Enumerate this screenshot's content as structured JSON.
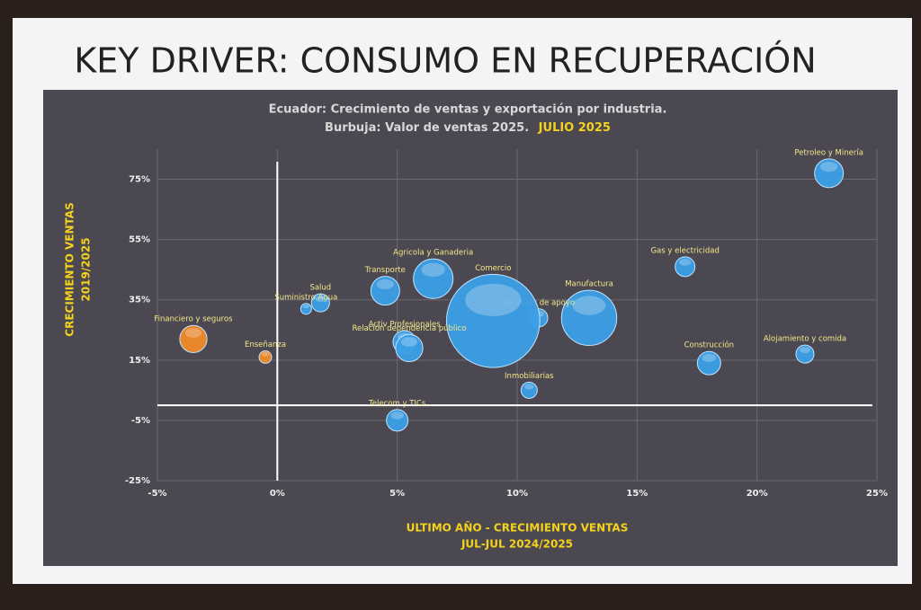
{
  "chart_data": {
    "type": "bubble",
    "title": "KEY DRIVER: CONSUMO EN RECUPERACIÓN",
    "subtitle": "Ecuador: Crecimiento de ventas y exportación por industria.",
    "subtitle2": "Burbuja: Valor de ventas 2025.",
    "subtitle2_highlight": "JULIO 2025",
    "x_label": "ULTIMO AÑO - CRECIMIENTO VENTAS",
    "x_label2": "JUL-JUL  2024/2025",
    "y_label": "CRECIMIENTO VENTAS",
    "y_label2": "2019/2025",
    "xlim": [
      -5,
      25
    ],
    "ylim": [
      -25,
      85
    ],
    "xticks": [
      {
        "value": -5,
        "label": "-5%"
      },
      {
        "value": 0,
        "label": "0%"
      },
      {
        "value": 5,
        "label": "5%"
      },
      {
        "value": 10,
        "label": "10%"
      },
      {
        "value": 15,
        "label": "15%"
      },
      {
        "value": 20,
        "label": "20%"
      },
      {
        "value": 25,
        "label": "25%"
      }
    ],
    "yticks": [
      {
        "value": -25,
        "label": "-25%"
      },
      {
        "value": -5,
        "label": "-5%"
      },
      {
        "value": 15,
        "label": "15%"
      },
      {
        "value": 35,
        "label": "35%"
      },
      {
        "value": 55,
        "label": "55%"
      },
      {
        "value": 75,
        "label": "75%"
      }
    ],
    "grid": true,
    "points": [
      {
        "label": "Petroleo y Minería",
        "x": 23,
        "y": 77,
        "size": 1.9,
        "color": "#3b9fe6"
      },
      {
        "label": "Gas y electricidad",
        "x": 17,
        "y": 46,
        "size": 0.9,
        "color": "#3b9fe6"
      },
      {
        "label": "Manufactura",
        "x": 13,
        "y": 29,
        "size": 7,
        "color": "#3b9fe6"
      },
      {
        "label": "Servicios de apoyo",
        "x": 10.9,
        "y": 29,
        "size": 0.75,
        "color": "#3b9fe6"
      },
      {
        "label": "Comercio",
        "x": 9,
        "y": 28,
        "size": 20,
        "color": "#3b9fe6"
      },
      {
        "label": "Agricola y Ganaderia",
        "x": 6.5,
        "y": 42,
        "size": 3.6,
        "color": "#3b9fe6"
      },
      {
        "label": "Transporte",
        "x": 4.5,
        "y": 38,
        "size": 1.9,
        "color": "#3b9fe6"
      },
      {
        "label": "Salud",
        "x": 1.8,
        "y": 34,
        "size": 0.75,
        "color": "#3b9fe6"
      },
      {
        "label": "Suministro Agua",
        "x": 1.2,
        "y": 32,
        "size": 0.27,
        "color": "#3b9fe6"
      },
      {
        "label": "Financiero y seguros",
        "x": -3.5,
        "y": 22,
        "size": 1.7,
        "color": "#f08a2a"
      },
      {
        "label": "Enseñanza",
        "x": -0.5,
        "y": 16,
        "size": 0.36,
        "color": "#f08a2a"
      },
      {
        "label": "Activ Profesionales",
        "x": 5.3,
        "y": 21,
        "size": 1.2,
        "color": "#3b9fe6"
      },
      {
        "label": "Relación dependencia público",
        "x": 5.5,
        "y": 19,
        "size": 1.7,
        "color": "#3b9fe6"
      },
      {
        "label": "Construcción",
        "x": 18,
        "y": 14,
        "size": 1.25,
        "color": "#3b9fe6"
      },
      {
        "label": "Alojamiento y comida",
        "x": 22,
        "y": 17,
        "size": 0.75,
        "color": "#3b9fe6"
      },
      {
        "label": "Inmobiliarias",
        "x": 10.5,
        "y": 5,
        "size": 0.6,
        "color": "#3b9fe6"
      },
      {
        "label": "Telecom y TICs",
        "x": 5,
        "y": -5,
        "size": 1.07,
        "color": "#3b9fe6"
      }
    ]
  }
}
